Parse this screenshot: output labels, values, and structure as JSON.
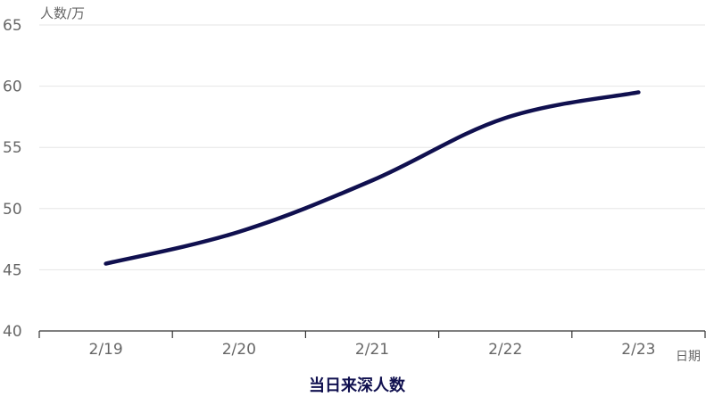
{
  "chart_data": {
    "type": "line",
    "title": "当日来深人数",
    "ylabel": "人数/万",
    "xlabel": "日期",
    "categories": [
      "2/19",
      "2/20",
      "2/21",
      "2/22",
      "2/23"
    ],
    "series": [
      {
        "values": [
          45.5,
          48.1,
          52.3,
          57.4,
          59.5
        ]
      }
    ],
    "ylim": [
      40,
      65
    ],
    "yticks": [
      40,
      45,
      50,
      55,
      60,
      65
    ],
    "grid": true,
    "line_color": "#10104f",
    "title_color": "#10104f"
  }
}
